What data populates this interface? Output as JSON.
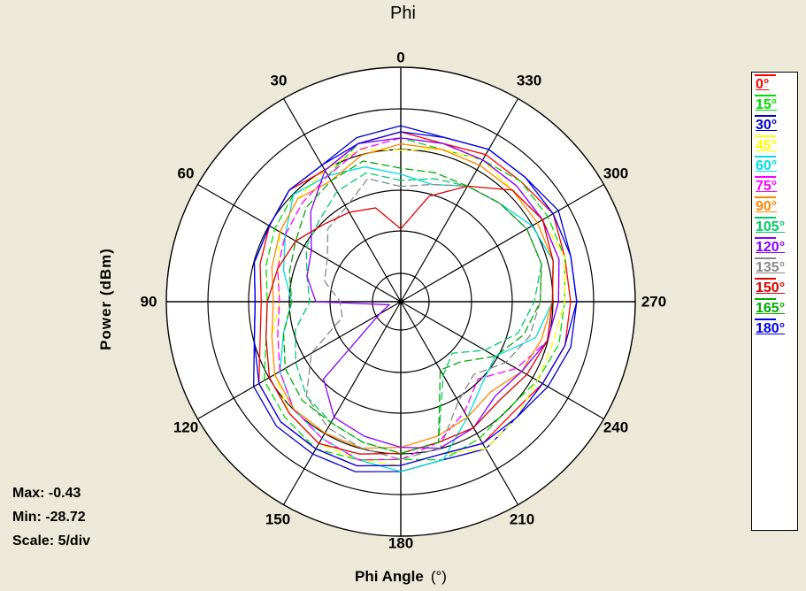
{
  "chart_data": {
    "type": "polar",
    "title": "Phi",
    "ylabel": "Power  (dBm)",
    "xlabel": "Phi Angle",
    "xunit": "(°)",
    "angle_ticks": [
      "0",
      "330",
      "300",
      "270",
      "240",
      "210",
      "180",
      "150",
      "120",
      "90",
      "60",
      "30"
    ],
    "stats": {
      "max": "Max: -0.43",
      "min": "Min: -28.72",
      "scale": "Scale: 5/div"
    },
    "r_range": [
      -30,
      5
    ],
    "grid": true,
    "legend": "right",
    "series": [
      {
        "name": "0°",
        "color": "#ff0000",
        "values": [
          -2,
          -3,
          -5,
          -4,
          -5,
          -6,
          -7,
          -6,
          -3,
          -2,
          -2,
          -2,
          -3,
          -4,
          -3,
          -4,
          -3,
          -2,
          -2,
          -2,
          -1,
          -2,
          -2,
          -3
        ]
      },
      {
        "name": "15°",
        "color": "#00dd00",
        "values": [
          -3,
          -3,
          -6,
          -5,
          -6,
          -7,
          -8,
          -7,
          -4,
          -3,
          -2,
          -3,
          -4,
          -3,
          -4,
          -5,
          -4,
          -3,
          -3,
          -2,
          -2,
          -2,
          -3,
          -4
        ]
      },
      {
        "name": "30°",
        "color": "#0000cc",
        "values": [
          -1,
          -2,
          -4,
          -4,
          -5,
          -5,
          -6,
          -5,
          -2,
          -1,
          -1,
          -1,
          -2,
          -3,
          -2,
          -3,
          -2,
          -1,
          -1,
          -1,
          0,
          -1,
          -1,
          -2
        ]
      },
      {
        "name": "45°",
        "color": "#ffff00",
        "values": [
          -5,
          -4,
          -5,
          -6,
          -7,
          -9,
          -10,
          -8,
          -6,
          -4,
          -3,
          -3,
          -3,
          -4,
          -2,
          -3,
          -4,
          -4,
          -3,
          -2,
          -3,
          -4,
          -3,
          -4
        ]
      },
      {
        "name": "60°",
        "color": "#00dddd",
        "values": [
          -9,
          -7,
          -6,
          -5,
          -8,
          -10,
          -12,
          -10,
          -7,
          -5,
          -4,
          -3,
          -2,
          -3,
          -8,
          -11,
          -12,
          -7,
          -5,
          -4,
          -5,
          -7,
          -8,
          -10
        ]
      },
      {
        "name": "75°",
        "color": "#ff00ff",
        "values": [
          -3,
          -4,
          -6,
          -7,
          -8,
          -9,
          -10,
          -9,
          -7,
          -5,
          -4,
          -3,
          -4,
          -6,
          -9,
          -12,
          -8,
          -5,
          -4,
          -3,
          -3,
          -3,
          -3,
          -3
        ]
      },
      {
        "name": "90°",
        "color": "#ff8800",
        "values": [
          -4,
          -5,
          -7,
          -6,
          -7,
          -8,
          -9,
          -8,
          -6,
          -5,
          -5,
          -5,
          -6,
          -7,
          -8,
          -9,
          -7,
          -6,
          -5,
          -4,
          -4,
          -4,
          -4,
          -4
        ]
      },
      {
        "name": "105°",
        "color": "#00cc66",
        "values": [
          -10,
          -8,
          -9,
          -11,
          -12,
          -14,
          -15,
          -12,
          -10,
          -8,
          -7,
          -6,
          -5,
          -6,
          -16,
          -18,
          -14,
          -10,
          -8,
          -6,
          -6,
          -7,
          -8,
          -9
        ]
      },
      {
        "name": "120°",
        "color": "#8800ff",
        "values": [
          -3,
          -3,
          -5,
          -9,
          -13,
          -14,
          -16,
          -28,
          -26,
          -12,
          -8,
          -7,
          -6,
          -5,
          -6,
          -8,
          -7,
          -5,
          -4,
          -3,
          -3,
          -3,
          -3,
          -3
        ]
      },
      {
        "name": "135°",
        "color": "#888888",
        "values": [
          -11,
          -9,
          -12,
          -13,
          -16,
          -17,
          -20,
          -20,
          -13,
          -8,
          -6,
          -5,
          -4,
          -5,
          -11,
          -13,
          -10,
          -8,
          -7,
          -6,
          -6,
          -7,
          -8,
          -10
        ]
      },
      {
        "name": "150°",
        "color": "#dd0000",
        "values": [
          -18,
          -14,
          -13,
          -12,
          -10,
          -9,
          -8,
          -7,
          -5,
          -4,
          -3,
          -4,
          -5,
          -6,
          -6,
          -7,
          -6,
          -5,
          -5,
          -4,
          -3,
          -4,
          -8,
          -12
        ]
      },
      {
        "name": "165°",
        "color": "#00aa00",
        "values": [
          -8,
          -6,
          -7,
          -8,
          -10,
          -11,
          -12,
          -10,
          -8,
          -7,
          -7,
          -6,
          -5,
          -6,
          -17,
          -16,
          -12,
          -9,
          -7,
          -6,
          -6,
          -7,
          -8,
          -8
        ]
      },
      {
        "name": "180°",
        "color": "#0000ee",
        "values": [
          -2,
          -3,
          -4,
          -4,
          -5,
          -5,
          -6,
          -5,
          -3,
          -2,
          -2,
          -2,
          -3,
          -4,
          -3,
          -3,
          -3,
          -2,
          -1,
          -1,
          -1,
          -1,
          -1,
          -2
        ]
      }
    ]
  }
}
